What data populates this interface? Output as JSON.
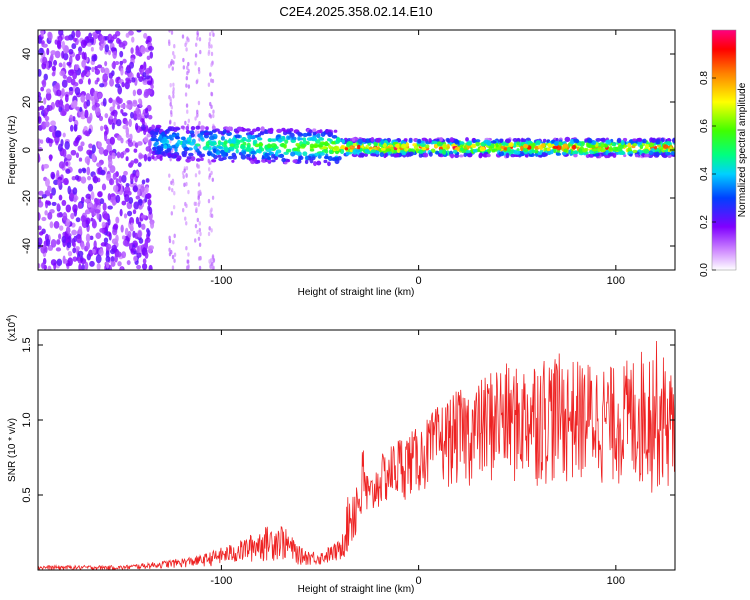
{
  "title": "C2E4.2025.358.02.14.E10",
  "chart_data": [
    {
      "type": "heatmap",
      "name": "spectrogram",
      "xlabel": "Height of straight line (km)",
      "ylabel": "Frequency (Hz)",
      "xlim": [
        -193,
        130
      ],
      "ylim": [
        -50,
        50
      ],
      "xticks": [
        -100,
        0,
        100
      ],
      "yticks": [
        -40,
        -20,
        0,
        20,
        40
      ],
      "colorbar": {
        "label": "Normalized spectral amplitude",
        "range": [
          0,
          1
        ],
        "ticks": [
          0.0,
          0.2,
          0.4,
          0.6,
          0.8
        ]
      },
      "description_regions": [
        {
          "x_range": [
            -193,
            -135
          ],
          "pattern": "broadband noise across all frequencies"
        },
        {
          "x_range": [
            -135,
            -40
          ],
          "pattern": "ridge near 0-5 Hz, strength increasing"
        },
        {
          "x_range": [
            -40,
            130
          ],
          "pattern": "strong narrow ridge near 0-2 Hz"
        }
      ]
    },
    {
      "type": "line",
      "name": "snr",
      "xlabel": "Height of straight line (km)",
      "ylabel": "SNR (10 * v/v)",
      "scale_note": "(x10",
      "scale_exp": "4",
      "scale_close": ")",
      "xlim": [
        -193,
        130
      ],
      "ylim": [
        0,
        1.6
      ],
      "xticks": [
        -100,
        0,
        100
      ],
      "yticks": [
        0.5,
        1.0,
        1.5
      ],
      "yticklabels": [
        "0.5",
        "1.0",
        "1.5"
      ],
      "color": "#ee2222",
      "envelope": {
        "x": [
          -193,
          -150,
          -130,
          -110,
          -100,
          -90,
          -80,
          -70,
          -60,
          -50,
          -40,
          -35,
          -30,
          -28,
          -25,
          -20,
          -10,
          0,
          10,
          20,
          30,
          40,
          50,
          60,
          70,
          80,
          90,
          100,
          110,
          120,
          130
        ],
        "lower": [
          0.0,
          0.0,
          0.01,
          0.02,
          0.03,
          0.04,
          0.05,
          0.06,
          0.03,
          0.03,
          0.05,
          0.1,
          0.2,
          0.25,
          0.3,
          0.4,
          0.45,
          0.5,
          0.55,
          0.55,
          0.55,
          0.55,
          0.55,
          0.55,
          0.55,
          0.55,
          0.55,
          0.55,
          0.5,
          0.5,
          0.5
        ],
        "upper": [
          0.03,
          0.03,
          0.06,
          0.1,
          0.15,
          0.2,
          0.28,
          0.32,
          0.15,
          0.12,
          0.2,
          0.55,
          0.7,
          0.85,
          0.6,
          0.75,
          0.9,
          0.95,
          1.1,
          1.2,
          1.25,
          1.4,
          1.35,
          1.45,
          1.45,
          1.4,
          1.4,
          1.35,
          1.45,
          1.55,
          1.3
        ]
      }
    }
  ]
}
